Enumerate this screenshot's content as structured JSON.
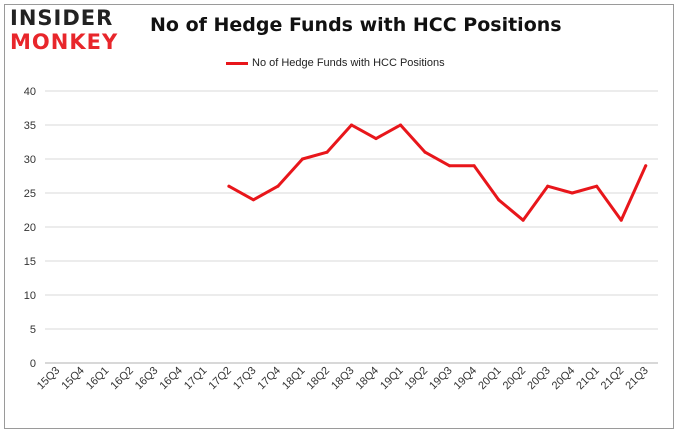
{
  "branding": {
    "line1": "INSIDER",
    "line2": "MONKEY"
  },
  "colors": {
    "series": "#e8161b",
    "grid": "#d9d9d9",
    "logo_red": "#e8262b"
  },
  "chart_data": {
    "type": "line",
    "title": "No of Hedge Funds with HCC Positions",
    "xlabel": "",
    "ylabel": "",
    "legend_position": "top-center",
    "grid": true,
    "ylim": [
      0,
      40
    ],
    "yticks": [
      "0",
      "5",
      "10",
      "15",
      "20",
      "25",
      "30",
      "35",
      "40"
    ],
    "categories": [
      "15Q3",
      "15Q4",
      "16Q1",
      "16Q2",
      "16Q3",
      "16Q4",
      "17Q1",
      "17Q2",
      "17Q3",
      "17Q4",
      "18Q1",
      "18Q2",
      "18Q3",
      "18Q4",
      "19Q1",
      "19Q2",
      "19Q3",
      "19Q4",
      "20Q1",
      "20Q2",
      "20Q3",
      "20Q4",
      "21Q1",
      "21Q2",
      "21Q3"
    ],
    "series": [
      {
        "name": "No of Hedge Funds with HCC Positions",
        "values": [
          null,
          null,
          null,
          null,
          null,
          null,
          null,
          26,
          24,
          26,
          30,
          31,
          35,
          33,
          35,
          31,
          29,
          29,
          24,
          21,
          26,
          25,
          26,
          21,
          29
        ]
      }
    ]
  }
}
